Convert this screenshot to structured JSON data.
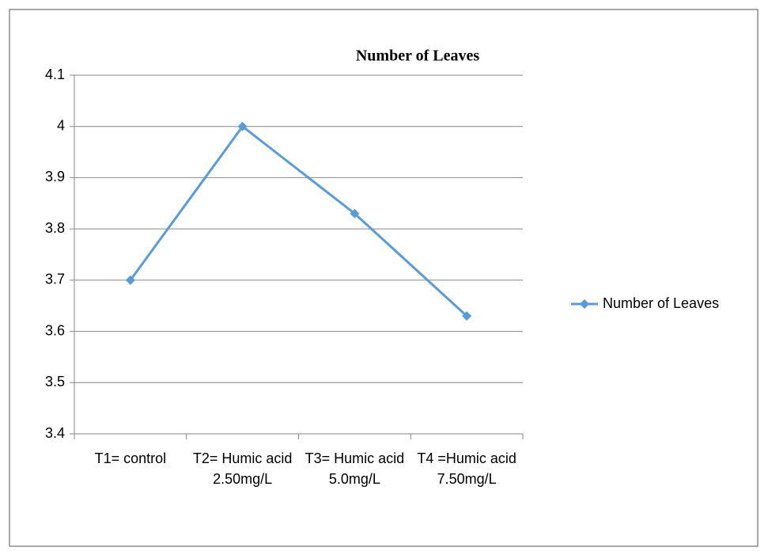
{
  "chart_data": {
    "type": "line",
    "title": "Number of Leaves",
    "categories": [
      "T1= control",
      "T2= Humic acid 2.50mg/L",
      "T3= Humic acid 5.0mg/L",
      "T4 =Humic acid 7.50mg/L"
    ],
    "series": [
      {
        "name": "Number of Leaves",
        "color": "#5b9bd5",
        "values": [
          3.7,
          4,
          3.83,
          3.63
        ]
      }
    ],
    "ylim": [
      3.4,
      4.1
    ],
    "yticks": [
      3.4,
      3.5,
      3.6,
      3.7,
      3.8,
      3.9,
      4,
      4.1
    ],
    "grid": true,
    "legend": "right"
  }
}
